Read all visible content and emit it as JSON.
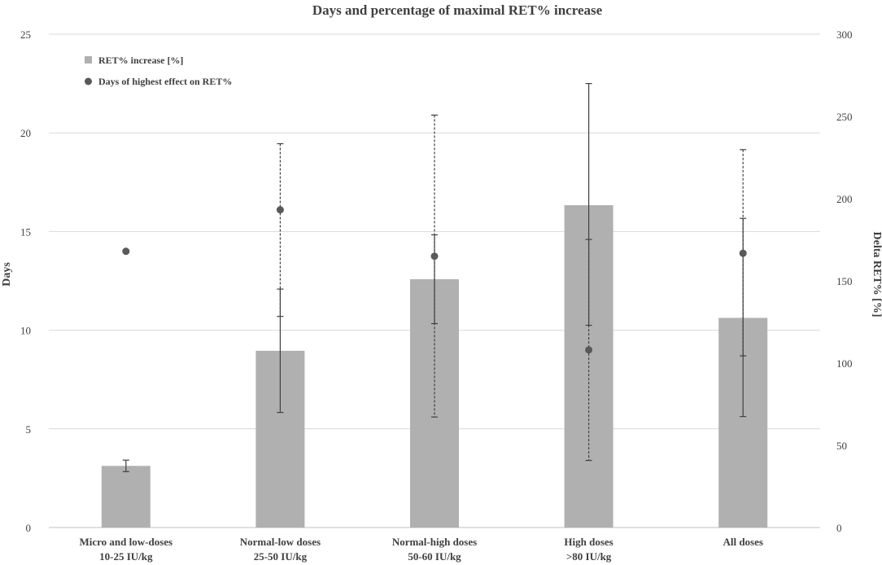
{
  "chart_data": {
    "type": "bar",
    "title": "Days and percentage of maximal RET% increase",
    "categories": [
      [
        "Micro and low-doses",
        "10-25 IU/kg"
      ],
      [
        "Normal-low doses",
        "25-50 IU/kg"
      ],
      [
        "Normal-high doses",
        "50-60 IU/kg"
      ],
      [
        "High doses",
        ">80 IU/kg"
      ],
      [
        "All doses",
        ""
      ]
    ],
    "ylabel": "Days",
    "y2label": "Delta RET% [%]",
    "ylim": [
      0,
      25
    ],
    "y2lim": [
      0,
      300
    ],
    "yticks": [
      0,
      5,
      10,
      15,
      20,
      25
    ],
    "y2ticks": [
      0,
      50,
      100,
      150,
      200,
      250,
      300
    ],
    "grid": true,
    "legend_position": "top-left",
    "series": [
      {
        "name": "RET% increase [%]",
        "kind": "bar",
        "axis": "right",
        "color": "#b0b0b0",
        "values": [
          37.5,
          107.5,
          151,
          196,
          127.5
        ],
        "err_low": [
          34,
          70,
          124,
          123,
          67.5
        ],
        "err_high": [
          41,
          145,
          178,
          270,
          188
        ]
      },
      {
        "name": "Days of highest effect on RET%",
        "kind": "scatter",
        "axis": "left",
        "color": "#595959",
        "values": [
          14,
          16.1,
          13.75,
          9,
          13.9
        ],
        "err_low": [
          null,
          10.7,
          5.6,
          3.4,
          8.7
        ],
        "err_high": [
          null,
          19.45,
          20.9,
          14.6,
          19.15
        ]
      }
    ]
  }
}
